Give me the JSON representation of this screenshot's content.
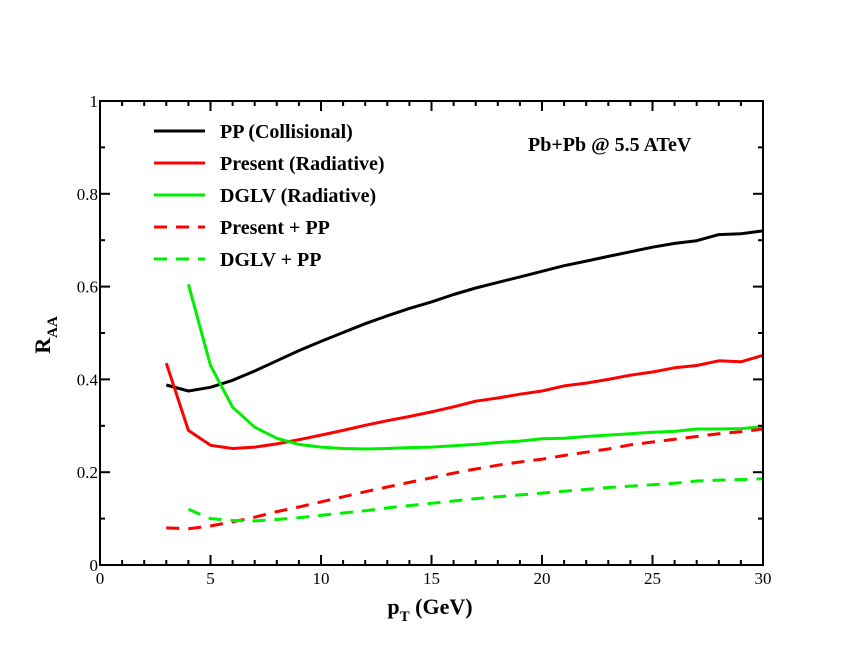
{
  "chart_data": {
    "type": "line",
    "title": "",
    "annotation": "Pb+Pb @ 5.5 ATeV",
    "xlabel": {
      "main": "p",
      "sub": "T",
      "rest": " (GeV)"
    },
    "ylabel": {
      "main": "R",
      "sub": "AA"
    },
    "xlim": [
      0,
      30
    ],
    "ylim": [
      0,
      1
    ],
    "xticks": [
      0,
      5,
      10,
      15,
      20,
      25,
      30
    ],
    "yticks": [
      0,
      0.2,
      0.4,
      0.6,
      0.8,
      1
    ],
    "xtick_labels": [
      "0",
      "5",
      "10",
      "15",
      "20",
      "25",
      "30"
    ],
    "ytick_labels": [
      "0",
      "0.2",
      "0.4",
      "0.6",
      "0.8",
      "1"
    ],
    "legend_position": "top-left",
    "series": [
      {
        "name": "PP (Collisional)",
        "color": "#000000",
        "style": "solid",
        "x": [
          3,
          4,
          5,
          6,
          7,
          8,
          9,
          10,
          11,
          12,
          13,
          14,
          15,
          16,
          17,
          18,
          19,
          20,
          21,
          22,
          23,
          24,
          25,
          26,
          27,
          28,
          29,
          30
        ],
        "y": [
          0.388,
          0.375,
          0.383,
          0.398,
          0.418,
          0.44,
          0.462,
          0.482,
          0.501,
          0.52,
          0.537,
          0.553,
          0.567,
          0.583,
          0.597,
          0.609,
          0.621,
          0.633,
          0.645,
          0.655,
          0.665,
          0.675,
          0.685,
          0.693,
          0.699,
          0.712,
          0.714,
          0.72
        ]
      },
      {
        "name": "Present (Radiative)",
        "color": "#ff0000",
        "style": "solid",
        "x": [
          3,
          4,
          5,
          6,
          7,
          8,
          9,
          10,
          11,
          12,
          13,
          14,
          15,
          16,
          17,
          18,
          19,
          20,
          21,
          22,
          23,
          24,
          25,
          26,
          27,
          28,
          29,
          30
        ],
        "y": [
          0.435,
          0.29,
          0.258,
          0.251,
          0.254,
          0.261,
          0.27,
          0.28,
          0.29,
          0.301,
          0.311,
          0.32,
          0.33,
          0.341,
          0.353,
          0.36,
          0.368,
          0.375,
          0.386,
          0.392,
          0.4,
          0.409,
          0.416,
          0.425,
          0.43,
          0.44,
          0.438,
          0.452
        ]
      },
      {
        "name": "DGLV (Radiative)",
        "color": "#00ee00",
        "style": "solid",
        "x": [
          4,
          5,
          6,
          7,
          8,
          9,
          10,
          11,
          12,
          13,
          14,
          15,
          16,
          17,
          18,
          19,
          20,
          21,
          22,
          23,
          24,
          25,
          26,
          27,
          28,
          29,
          30
        ],
        "y": [
          0.605,
          0.43,
          0.34,
          0.297,
          0.273,
          0.26,
          0.254,
          0.251,
          0.25,
          0.251,
          0.253,
          0.254,
          0.257,
          0.26,
          0.264,
          0.267,
          0.272,
          0.273,
          0.277,
          0.28,
          0.283,
          0.286,
          0.288,
          0.293,
          0.293,
          0.294,
          0.298
        ]
      },
      {
        "name": "Present + PP",
        "color": "#ff0000",
        "style": "dashed",
        "x": [
          3,
          4,
          5,
          6,
          7,
          8,
          9,
          10,
          11,
          12,
          13,
          14,
          15,
          16,
          17,
          18,
          19,
          20,
          21,
          22,
          23,
          24,
          25,
          26,
          27,
          28,
          29,
          30
        ],
        "y": [
          0.08,
          0.078,
          0.084,
          0.093,
          0.103,
          0.115,
          0.125,
          0.136,
          0.147,
          0.158,
          0.168,
          0.178,
          0.188,
          0.198,
          0.207,
          0.215,
          0.222,
          0.228,
          0.236,
          0.243,
          0.25,
          0.259,
          0.265,
          0.271,
          0.277,
          0.283,
          0.287,
          0.293
        ]
      },
      {
        "name": "DGLV + PP",
        "color": "#00ee00",
        "style": "dashed",
        "x": [
          4,
          5,
          6,
          7,
          8,
          9,
          10,
          11,
          12,
          13,
          14,
          15,
          16,
          17,
          18,
          19,
          20,
          21,
          22,
          23,
          24,
          25,
          26,
          27,
          28,
          29,
          30
        ],
        "y": [
          0.12,
          0.1,
          0.096,
          0.095,
          0.098,
          0.102,
          0.107,
          0.112,
          0.117,
          0.123,
          0.128,
          0.133,
          0.138,
          0.143,
          0.147,
          0.151,
          0.155,
          0.159,
          0.163,
          0.167,
          0.17,
          0.173,
          0.176,
          0.181,
          0.183,
          0.184,
          0.186
        ]
      }
    ]
  }
}
